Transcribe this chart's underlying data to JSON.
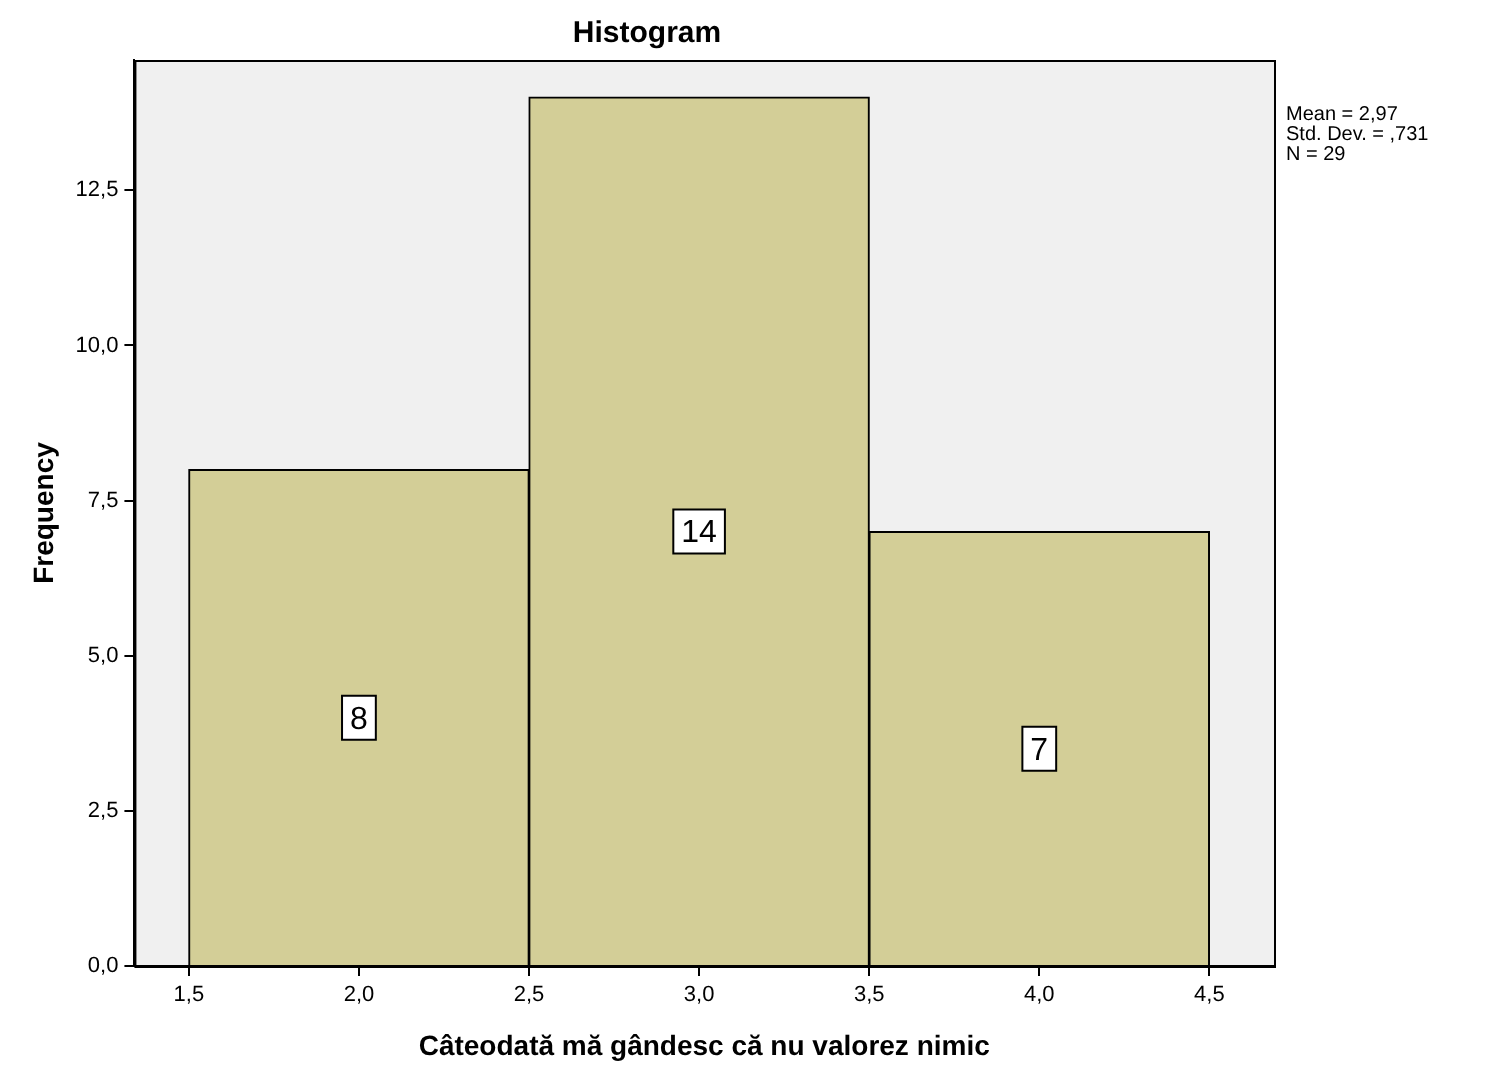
{
  "chart_data": {
    "type": "histogram",
    "title": "Histogram",
    "xlabel": "Câteodată mă gândesc că nu valorez nimic",
    "ylabel": "Frequency",
    "bins": [
      1.5,
      2.5,
      3.5,
      4.5
    ],
    "values": [
      8,
      14,
      7
    ],
    "color": "#d3ce97",
    "data_labels": true,
    "xlim": [
      1.34,
      4.69
    ],
    "xticks": [
      {
        "value": 1.5,
        "label": "1,5"
      },
      {
        "value": 2.0,
        "label": "2,0"
      },
      {
        "value": 2.5,
        "label": "2,5"
      },
      {
        "value": 3.0,
        "label": "3,0"
      },
      {
        "value": 3.5,
        "label": "3,5"
      },
      {
        "value": 4.0,
        "label": "4,0"
      },
      {
        "value": 4.5,
        "label": "4,5"
      }
    ],
    "ylim": [
      0,
      14.6
    ],
    "yticks": [
      {
        "value": 0,
        "label": "0,0"
      },
      {
        "value": 2.5,
        "label": "2,5"
      },
      {
        "value": 5.0,
        "label": "5,0"
      },
      {
        "value": 7.5,
        "label": "7,5"
      },
      {
        "value": 10.0,
        "label": "10,0"
      },
      {
        "value": 12.5,
        "label": "12,5"
      }
    ],
    "grid": false,
    "legend": false,
    "annotations": [
      "Mean = 2,97",
      "Std. Dev. = ,731",
      "N = 29"
    ]
  }
}
